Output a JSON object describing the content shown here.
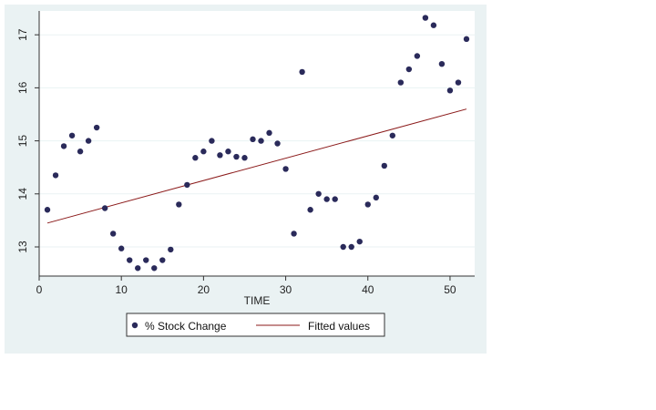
{
  "chart_data": {
    "type": "scatter",
    "xlabel": "TIME",
    "ylabel": "",
    "xlim": [
      0,
      53
    ],
    "ylim": [
      12.45,
      17.45
    ],
    "x_ticks": [
      "0",
      "10",
      "20",
      "30",
      "40",
      "50"
    ],
    "y_ticks": [
      "13",
      "14",
      "15",
      "16",
      "17"
    ],
    "grid": true,
    "legend_position": "bottom",
    "colors": {
      "points": "#2a2a5a",
      "fit": "#8b1a1a",
      "plot_bg": "#ffffff",
      "frame_bg": "#eaf2f3",
      "grid": "#eaf2f3"
    },
    "series": [
      {
        "name": "% Stock Change",
        "kind": "scatter",
        "x": [
          1,
          2,
          3,
          4,
          5,
          6,
          7,
          8,
          9,
          10,
          11,
          12,
          13,
          14,
          15,
          16,
          17,
          18,
          19,
          20,
          21,
          22,
          23,
          24,
          25,
          26,
          27,
          28,
          29,
          30,
          31,
          32,
          33,
          34,
          35,
          36,
          37,
          38,
          39,
          40,
          41,
          42,
          43,
          44,
          45,
          46,
          47,
          48,
          49,
          50,
          51,
          52
        ],
        "y": [
          13.7,
          14.35,
          14.9,
          15.1,
          14.8,
          15.0,
          15.25,
          13.73,
          13.25,
          12.97,
          12.75,
          12.6,
          12.75,
          12.6,
          12.75,
          12.95,
          13.8,
          14.17,
          14.68,
          14.8,
          15.0,
          14.73,
          14.8,
          14.7,
          14.68,
          15.03,
          15.0,
          15.15,
          14.95,
          14.47,
          13.25,
          16.3,
          13.7,
          14.0,
          13.9,
          13.9,
          13.0,
          13.0,
          13.1,
          13.8,
          13.93,
          14.53,
          15.1,
          16.1,
          16.35,
          16.6,
          17.32,
          17.18,
          16.45,
          15.95,
          16.1,
          16.92
        ]
      },
      {
        "name": "Fitted values",
        "kind": "line",
        "x": [
          1,
          52
        ],
        "y": [
          13.45,
          15.6
        ]
      }
    ]
  }
}
